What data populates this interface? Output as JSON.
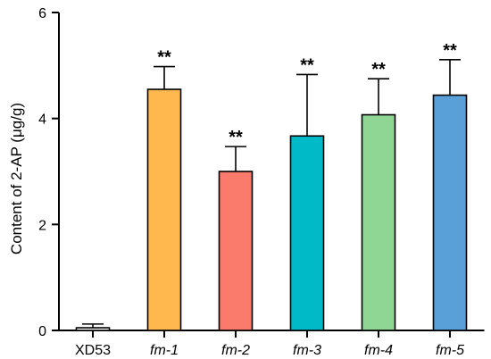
{
  "chart_data": {
    "type": "bar",
    "title": "",
    "xlabel": "",
    "ylabel": "Content of 2-AP (μg/g)",
    "ylim": [
      0,
      6
    ],
    "yticks": [
      0,
      2,
      4,
      6
    ],
    "grid": false,
    "categories": [
      "XD53",
      "fm-1",
      "fm-2",
      "fm-3",
      "fm-4",
      "fm-5"
    ],
    "italic_categories": [
      false,
      true,
      true,
      true,
      true,
      true
    ],
    "values": [
      0.05,
      4.55,
      3.0,
      3.67,
      4.07,
      4.44
    ],
    "errors": [
      0.07,
      0.43,
      0.47,
      1.16,
      0.68,
      0.67
    ],
    "significance": [
      "",
      "**",
      "**",
      "**",
      "**",
      "**"
    ],
    "colors": [
      "#ffffff",
      "#ffb84d",
      "#fa7a6b",
      "#00bac8",
      "#8fd694",
      "#5aa0d8"
    ]
  }
}
